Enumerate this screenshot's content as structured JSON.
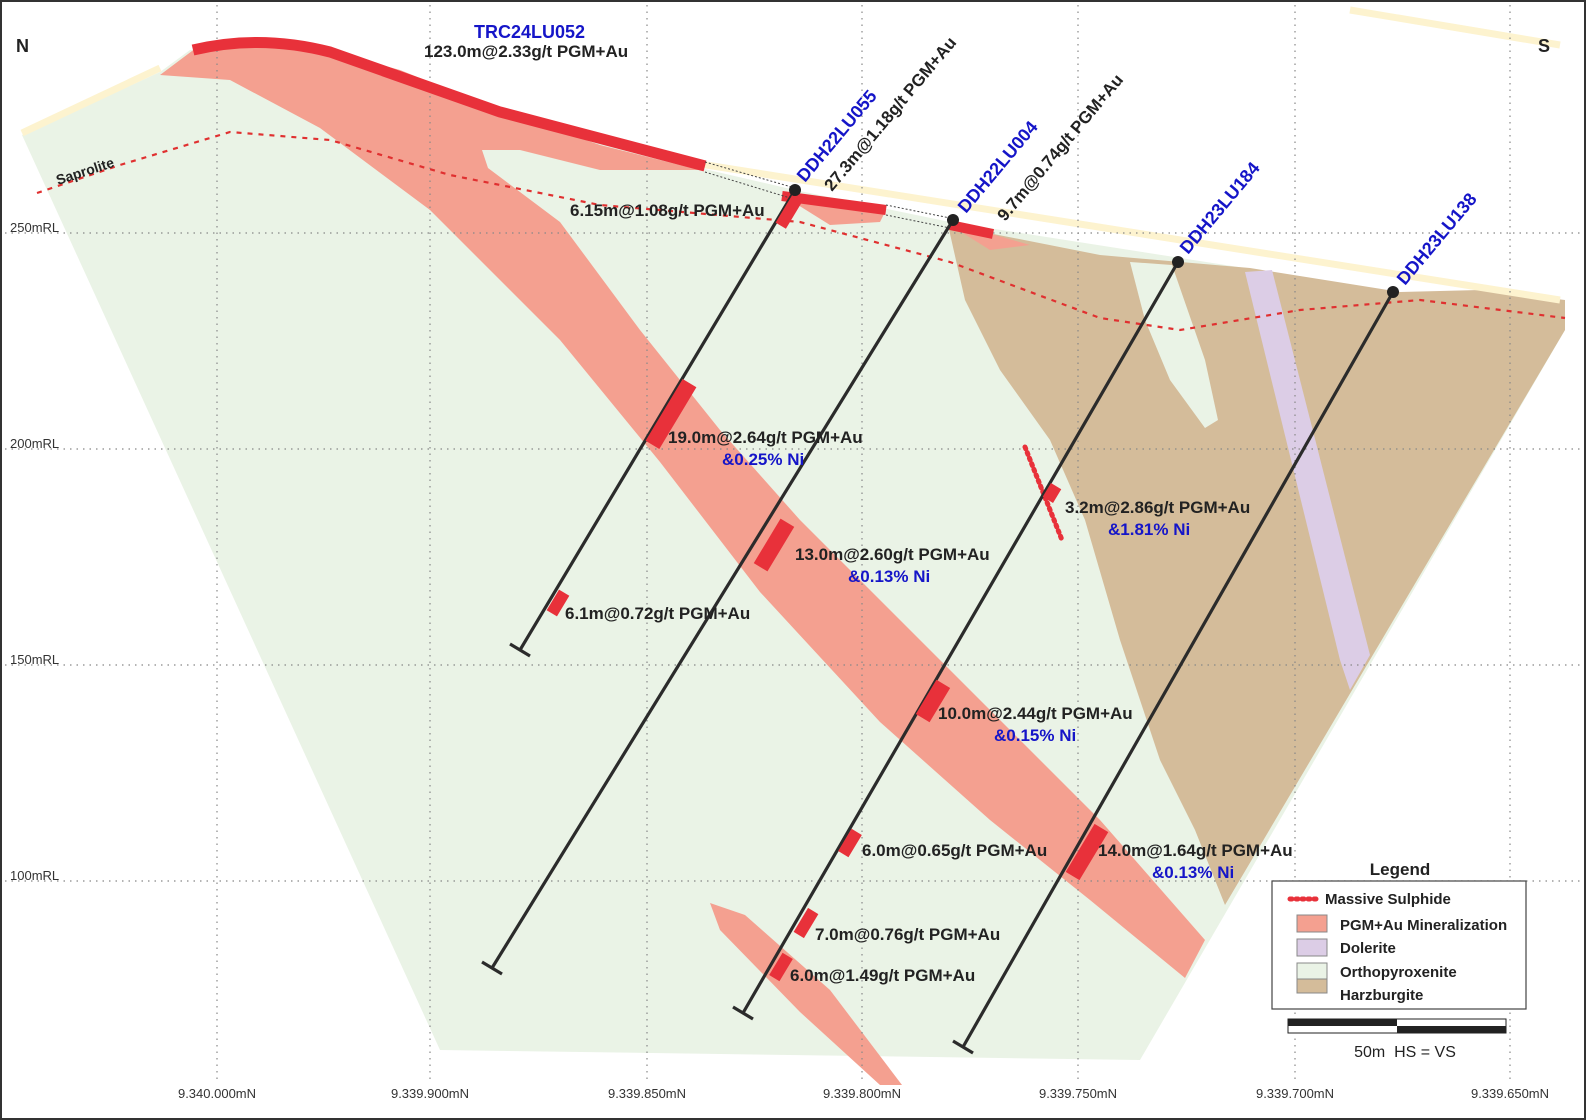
{
  "compass": {
    "left": "N",
    "right": "S"
  },
  "rl_labels": [
    "250mRL",
    "200mRL",
    "150mRL",
    "100mRL"
  ],
  "northing_labels": [
    "9.340.000mN",
    "9.339.900mN",
    "9.339.850mN",
    "9.339.800mN",
    "9.339.750mN",
    "9.339.700mN",
    "9.339.650mN"
  ],
  "saprolite_label": "Saprolite",
  "holes": [
    {
      "name": "TRC24LU052",
      "surface_intercept": "123.0m@2.33g/t PGM+Au"
    },
    {
      "name": "DDH22LU055",
      "surface_intercept": "27.3m@1.18g/t PGM+Au"
    },
    {
      "name": "DDH22LU004",
      "surface_intercept": "9.7m@0.74g/t PGM+Au"
    },
    {
      "name": "DDH23LU184"
    },
    {
      "name": "DDH23LU138"
    }
  ],
  "intercepts": [
    {
      "text": "6.15m@1.08g/t PGM+Au"
    },
    {
      "text": "19.0m@2.64g/t PGM+Au",
      "ni": "&0.25% Ni"
    },
    {
      "text": "13.0m@2.60g/t PGM+Au",
      "ni": "&0.13% Ni"
    },
    {
      "text": "6.1m@0.72g/t PGM+Au"
    },
    {
      "text": "3.2m@2.86g/t PGM+Au",
      "ni": "&1.81% Ni"
    },
    {
      "text": "10.0m@2.44g/t PGM+Au",
      "ni": "&0.15% Ni"
    },
    {
      "text": "6.0m@0.65g/t PGM+Au"
    },
    {
      "text": "14.0m@1.64g/t PGM+Au",
      "ni": "&0.13% Ni"
    },
    {
      "text": "7.0m@0.76g/t PGM+Au"
    },
    {
      "text": "6.0m@1.49g/t PGM+Au"
    }
  ],
  "legend": {
    "title": "Legend",
    "items": [
      {
        "label": "Massive Sulphide",
        "color": "#e8313a"
      },
      {
        "label": "PGM+Au Mineralization",
        "color": "#f4a090"
      },
      {
        "label": "Dolerite",
        "color": "#dccde6"
      },
      {
        "label": "Orthopyroxenite",
        "color": "#eaf3e6"
      },
      {
        "label": "Harzburgite",
        "color": "#d4bc9a"
      }
    ]
  },
  "scale": {
    "label": "50m  HS = VS"
  },
  "colors": {
    "hole_label": "#1515c8",
    "high_grade": "#e8313a",
    "saprolite_line": "#e03030",
    "oxide_cap": "#fdf6d8"
  }
}
